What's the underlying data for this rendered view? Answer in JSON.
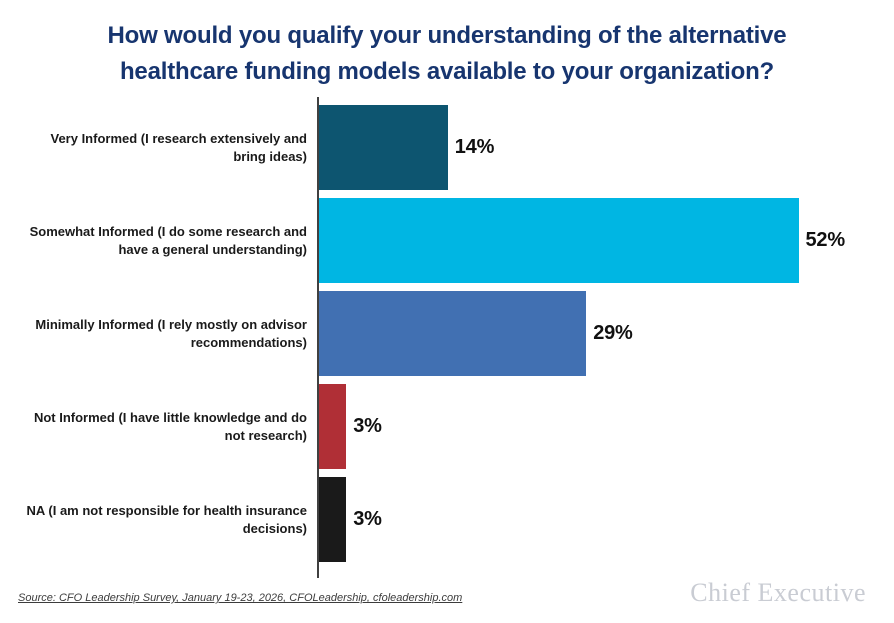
{
  "title": "How would you qualify your understanding of the alternative healthcare funding models available to your organization?",
  "chart_data": {
    "type": "bar",
    "orientation": "horizontal",
    "title": "How would you qualify your understanding of the alternative healthcare funding models available to your organization?",
    "categories": [
      "Very Informed (I research extensively and bring ideas)",
      "Somewhat Informed (I do some research and have a general understanding)",
      "Minimally Informed (I rely mostly on advisor recommendations)",
      "Not Informed (I have little knowledge and do not research)",
      "NA (I am not responsible for health insurance decisions)"
    ],
    "values": [
      14,
      52,
      29,
      3,
      3
    ],
    "value_labels": [
      "14%",
      "52%",
      "29%",
      "3%",
      "3%"
    ],
    "bar_colors": [
      "#0d5570",
      "#00b6e3",
      "#4170b2",
      "#b02f36",
      "#1a1a1a"
    ],
    "xlim": [
      0,
      52
    ],
    "grid": false,
    "legend": false,
    "xlabel": "",
    "ylabel": ""
  },
  "footer": {
    "source": "Source: CFO Leadership Survey, January 19-23, 2026, CFOLeadership, cfoleadership.com",
    "brand": "Chief Executive"
  },
  "colors": {
    "title_text": "#17356f",
    "axis_line": "#404040",
    "label_text": "#1a1a1a",
    "source_text": "#3c3c3c",
    "brand_text": "#c9ccd3",
    "background": "#ffffff"
  }
}
